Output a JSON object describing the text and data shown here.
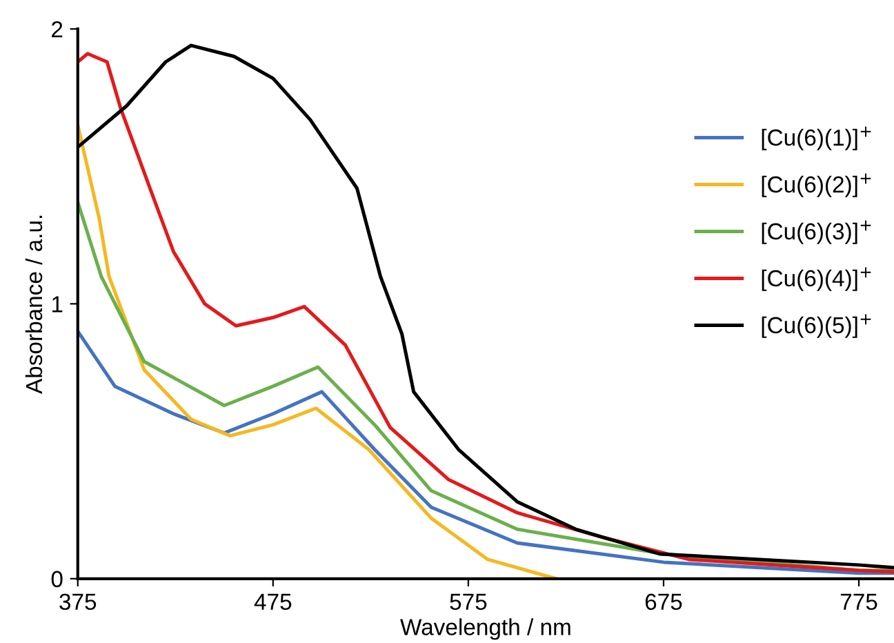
{
  "chart_data": {
    "type": "line",
    "xlabel": "Wavelength / nm",
    "ylabel": "Absorbance / a.u.",
    "xlim": [
      375,
      793
    ],
    "xticks": [
      375,
      475,
      575,
      675,
      775
    ],
    "ylim": [
      0,
      2
    ],
    "yticks": [
      0,
      1,
      2
    ],
    "grid": false,
    "legend": "upper right",
    "marker": "none",
    "line_style": "solid",
    "series": [
      {
        "name": "[Cu(6)(1)]$^{+}$",
        "color": "#4472c4",
        "x": [
          375,
          394,
          424,
          450,
          475,
          500,
          527,
          556,
          600,
          675,
          775,
          793
        ],
        "values": [
          0.9,
          0.7,
          0.6,
          0.53,
          0.6,
          0.68,
          0.47,
          0.26,
          0.13,
          0.06,
          0.02,
          0.02
        ]
      },
      {
        "name": "[Cu(6)(2)]$^{+}$",
        "color": "#f5b821",
        "x": [
          375,
          386,
          391,
          409,
          433,
          453,
          475,
          497,
          524,
          556,
          585,
          620
        ],
        "values": [
          1.65,
          1.31,
          1.1,
          0.76,
          0.58,
          0.52,
          0.56,
          0.62,
          0.47,
          0.22,
          0.07,
          0.0
        ]
      },
      {
        "name": "[Cu(6)(3)]$^{+}$",
        "color": "#6ab04c",
        "x": [
          375,
          387,
          409,
          450,
          475,
          498,
          527,
          556,
          600,
          675,
          775,
          793
        ],
        "values": [
          1.37,
          1.1,
          0.79,
          0.63,
          0.7,
          0.77,
          0.56,
          0.32,
          0.18,
          0.09,
          0.03,
          0.03
        ]
      },
      {
        "name": "[Cu(6)(4)]$^{+}$",
        "color": "#e31a1c",
        "x": [
          375,
          380,
          390,
          397,
          412,
          424,
          440,
          456,
          475,
          491,
          512,
          535,
          565,
          600,
          644,
          688,
          775,
          793
        ],
        "values": [
          1.88,
          1.91,
          1.88,
          1.71,
          1.42,
          1.19,
          1.0,
          0.92,
          0.95,
          0.99,
          0.85,
          0.55,
          0.36,
          0.24,
          0.15,
          0.07,
          0.03,
          0.025
        ]
      },
      {
        "name": "[Cu(6)(5)]$^{+}$",
        "color": "#000000",
        "x": [
          375,
          400,
          420,
          433,
          455,
          475,
          494,
          518,
          530,
          541,
          547,
          570,
          600,
          630,
          673,
          775,
          793
        ],
        "values": [
          1.57,
          1.72,
          1.88,
          1.94,
          1.9,
          1.82,
          1.67,
          1.42,
          1.1,
          0.89,
          0.68,
          0.47,
          0.28,
          0.18,
          0.09,
          0.05,
          0.04
        ]
      }
    ]
  }
}
